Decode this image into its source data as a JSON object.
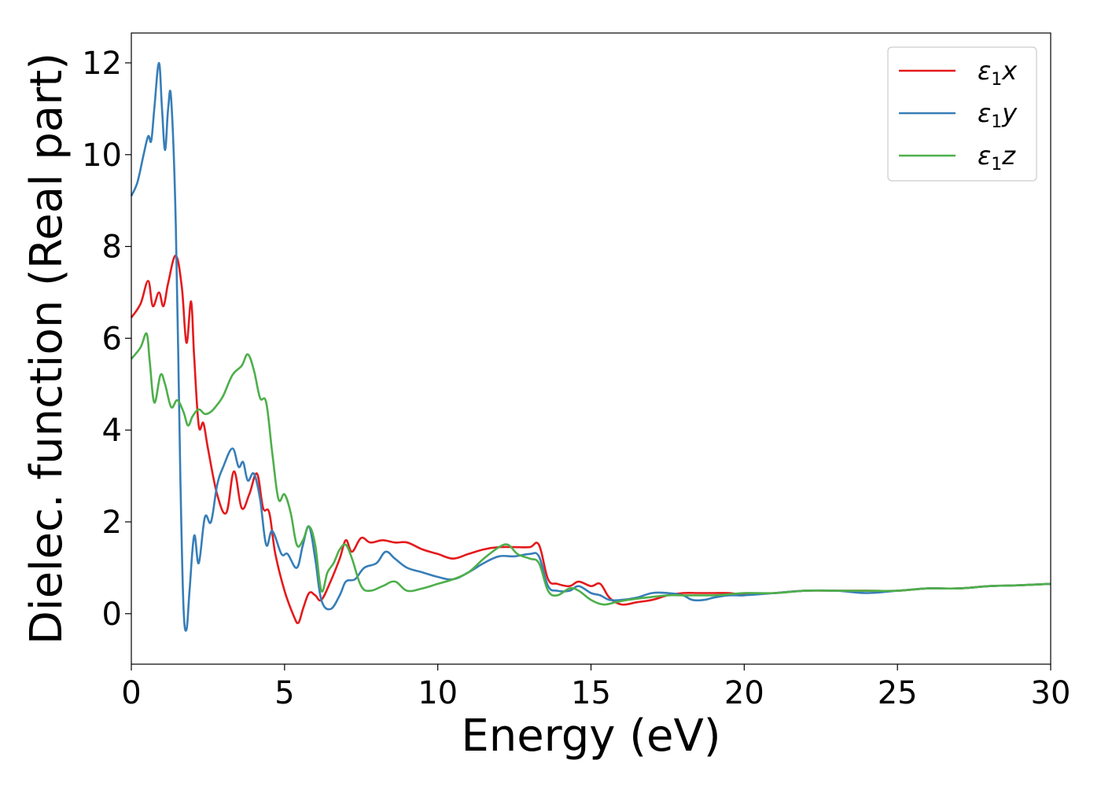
{
  "chart_data": {
    "type": "line",
    "title": "",
    "xlabel": "Energy (eV)",
    "ylabel": "Dielec. function (Real part)",
    "xlim": [
      0,
      30
    ],
    "ylim": [
      -1.1,
      12.65
    ],
    "xticks": [
      0,
      5,
      10,
      15,
      20,
      25,
      30
    ],
    "yticks": [
      0,
      2,
      4,
      6,
      8,
      10,
      12
    ],
    "grid": false,
    "legend_position": "top-right",
    "series": [
      {
        "name": "ε₁x",
        "legend": {
          "base": "ε",
          "sub": "1",
          "tail": "x"
        },
        "color": "#e41a1c",
        "x": [
          0,
          0.3,
          0.55,
          0.7,
          0.9,
          1.05,
          1.2,
          1.45,
          1.65,
          1.8,
          1.95,
          2.05,
          2.2,
          2.35,
          2.5,
          2.8,
          3.1,
          3.35,
          3.6,
          3.85,
          4.1,
          4.3,
          4.5,
          4.7,
          5.0,
          5.3,
          5.45,
          5.6,
          5.8,
          6.0,
          6.2,
          6.5,
          6.8,
          7.0,
          7.2,
          7.5,
          7.8,
          8.2,
          8.6,
          9.0,
          9.5,
          10.0,
          10.5,
          11.0,
          11.5,
          12.0,
          12.5,
          13.0,
          13.3,
          13.6,
          13.9,
          14.3,
          14.6,
          15.0,
          15.3,
          15.6,
          16.0,
          16.5,
          17.0,
          17.5,
          18.0,
          18.5,
          19.0,
          19.5,
          20.0,
          21.0,
          22.0,
          23.0,
          24.0,
          25.0,
          26.0,
          27.0,
          28.0,
          29.0,
          30.0
        ],
        "y": [
          6.45,
          6.75,
          7.25,
          6.7,
          7.0,
          6.7,
          7.2,
          7.8,
          7.1,
          5.9,
          6.8,
          5.6,
          4.1,
          4.15,
          3.6,
          2.6,
          2.2,
          3.1,
          2.3,
          2.6,
          3.05,
          2.3,
          2.2,
          1.3,
          0.5,
          -0.05,
          -0.2,
          0.1,
          0.45,
          0.4,
          0.3,
          0.7,
          1.2,
          1.6,
          1.35,
          1.65,
          1.55,
          1.6,
          1.55,
          1.55,
          1.4,
          1.3,
          1.2,
          1.3,
          1.4,
          1.45,
          1.45,
          1.45,
          1.5,
          0.75,
          0.65,
          0.6,
          0.7,
          0.6,
          0.65,
          0.35,
          0.2,
          0.25,
          0.3,
          0.4,
          0.45,
          0.45,
          0.45,
          0.45,
          0.42,
          0.45,
          0.5,
          0.5,
          0.5,
          0.5,
          0.55,
          0.55,
          0.6,
          0.62,
          0.65
        ]
      },
      {
        "name": "ε₁y",
        "legend": {
          "base": "ε",
          "sub": "1",
          "tail": "y"
        },
        "color": "#377eb8",
        "x": [
          0,
          0.2,
          0.4,
          0.55,
          0.65,
          0.75,
          0.9,
          1.0,
          1.1,
          1.2,
          1.3,
          1.45,
          1.6,
          1.7,
          1.8,
          1.9,
          2.05,
          2.2,
          2.4,
          2.6,
          2.8,
          3.0,
          3.3,
          3.5,
          3.65,
          3.8,
          4.0,
          4.2,
          4.4,
          4.6,
          4.9,
          5.1,
          5.4,
          5.6,
          5.8,
          6.0,
          6.2,
          6.5,
          6.8,
          7.0,
          7.3,
          7.6,
          8.0,
          8.3,
          8.6,
          9.0,
          9.5,
          10.0,
          10.5,
          11.0,
          11.5,
          12.0,
          12.5,
          13.0,
          13.3,
          13.6,
          13.9,
          14.3,
          14.6,
          15.0,
          15.3,
          15.6,
          16.0,
          16.5,
          17.0,
          17.5,
          18.0,
          18.3,
          18.7,
          19.0,
          19.5,
          20.0,
          21.0,
          22.0,
          23.0,
          24.0,
          25.0,
          26.0,
          27.0,
          28.0,
          29.0,
          30.0
        ],
        "y": [
          9.1,
          9.4,
          10.0,
          10.4,
          10.3,
          11.0,
          12.0,
          11.0,
          10.1,
          11.0,
          11.2,
          8.5,
          3.0,
          0.2,
          -0.35,
          0.5,
          1.7,
          1.1,
          2.1,
          2.0,
          2.8,
          3.2,
          3.6,
          3.2,
          3.3,
          2.9,
          3.05,
          2.5,
          1.5,
          1.8,
          1.3,
          1.3,
          1.0,
          1.5,
          1.9,
          1.2,
          0.3,
          0.1,
          0.4,
          0.7,
          0.75,
          1.0,
          1.1,
          1.35,
          1.2,
          1.0,
          0.9,
          0.8,
          0.75,
          0.9,
          1.1,
          1.25,
          1.25,
          1.3,
          1.25,
          0.6,
          0.5,
          0.5,
          0.6,
          0.45,
          0.4,
          0.3,
          0.3,
          0.35,
          0.45,
          0.45,
          0.4,
          0.3,
          0.3,
          0.35,
          0.4,
          0.4,
          0.45,
          0.5,
          0.5,
          0.45,
          0.5,
          0.55,
          0.55,
          0.6,
          0.62,
          0.65
        ]
      },
      {
        "name": "ε₁z",
        "legend": {
          "base": "ε",
          "sub": "1",
          "tail": "z"
        },
        "color": "#4daf4a",
        "x": [
          0,
          0.3,
          0.5,
          0.6,
          0.75,
          0.95,
          1.1,
          1.3,
          1.5,
          1.7,
          1.85,
          2.0,
          2.2,
          2.4,
          2.6,
          2.8,
          3.0,
          3.3,
          3.6,
          3.8,
          4.0,
          4.2,
          4.4,
          4.6,
          4.8,
          5.0,
          5.2,
          5.4,
          5.6,
          5.8,
          6.0,
          6.2,
          6.4,
          6.6,
          6.8,
          7.0,
          7.2,
          7.5,
          7.8,
          8.2,
          8.6,
          9.0,
          9.5,
          10.0,
          10.5,
          11.0,
          11.5,
          12.0,
          12.3,
          12.6,
          13.0,
          13.3,
          13.6,
          13.9,
          14.3,
          14.6,
          15.0,
          15.4,
          15.8,
          16.2,
          16.8,
          17.5,
          18.0,
          18.5,
          19.0,
          19.5,
          20.0,
          21.0,
          22.0,
          23.0,
          24.0,
          25.0,
          26.0,
          27.0,
          28.0,
          29.0,
          30.0
        ],
        "y": [
          5.55,
          5.8,
          6.1,
          5.5,
          4.6,
          5.2,
          5.0,
          4.5,
          4.65,
          4.4,
          4.1,
          4.3,
          4.45,
          4.35,
          4.4,
          4.55,
          4.75,
          5.2,
          5.4,
          5.65,
          5.3,
          4.7,
          4.6,
          3.5,
          2.5,
          2.6,
          2.2,
          1.5,
          1.6,
          1.9,
          1.5,
          0.5,
          0.9,
          1.1,
          1.4,
          1.5,
          1.2,
          0.6,
          0.5,
          0.6,
          0.7,
          0.5,
          0.55,
          0.65,
          0.75,
          0.9,
          1.2,
          1.45,
          1.5,
          1.3,
          1.2,
          1.1,
          0.5,
          0.4,
          0.55,
          0.5,
          0.3,
          0.2,
          0.25,
          0.3,
          0.35,
          0.4,
          0.4,
          0.4,
          0.4,
          0.42,
          0.45,
          0.45,
          0.5,
          0.5,
          0.5,
          0.5,
          0.55,
          0.55,
          0.6,
          0.62,
          0.65
        ]
      }
    ]
  }
}
